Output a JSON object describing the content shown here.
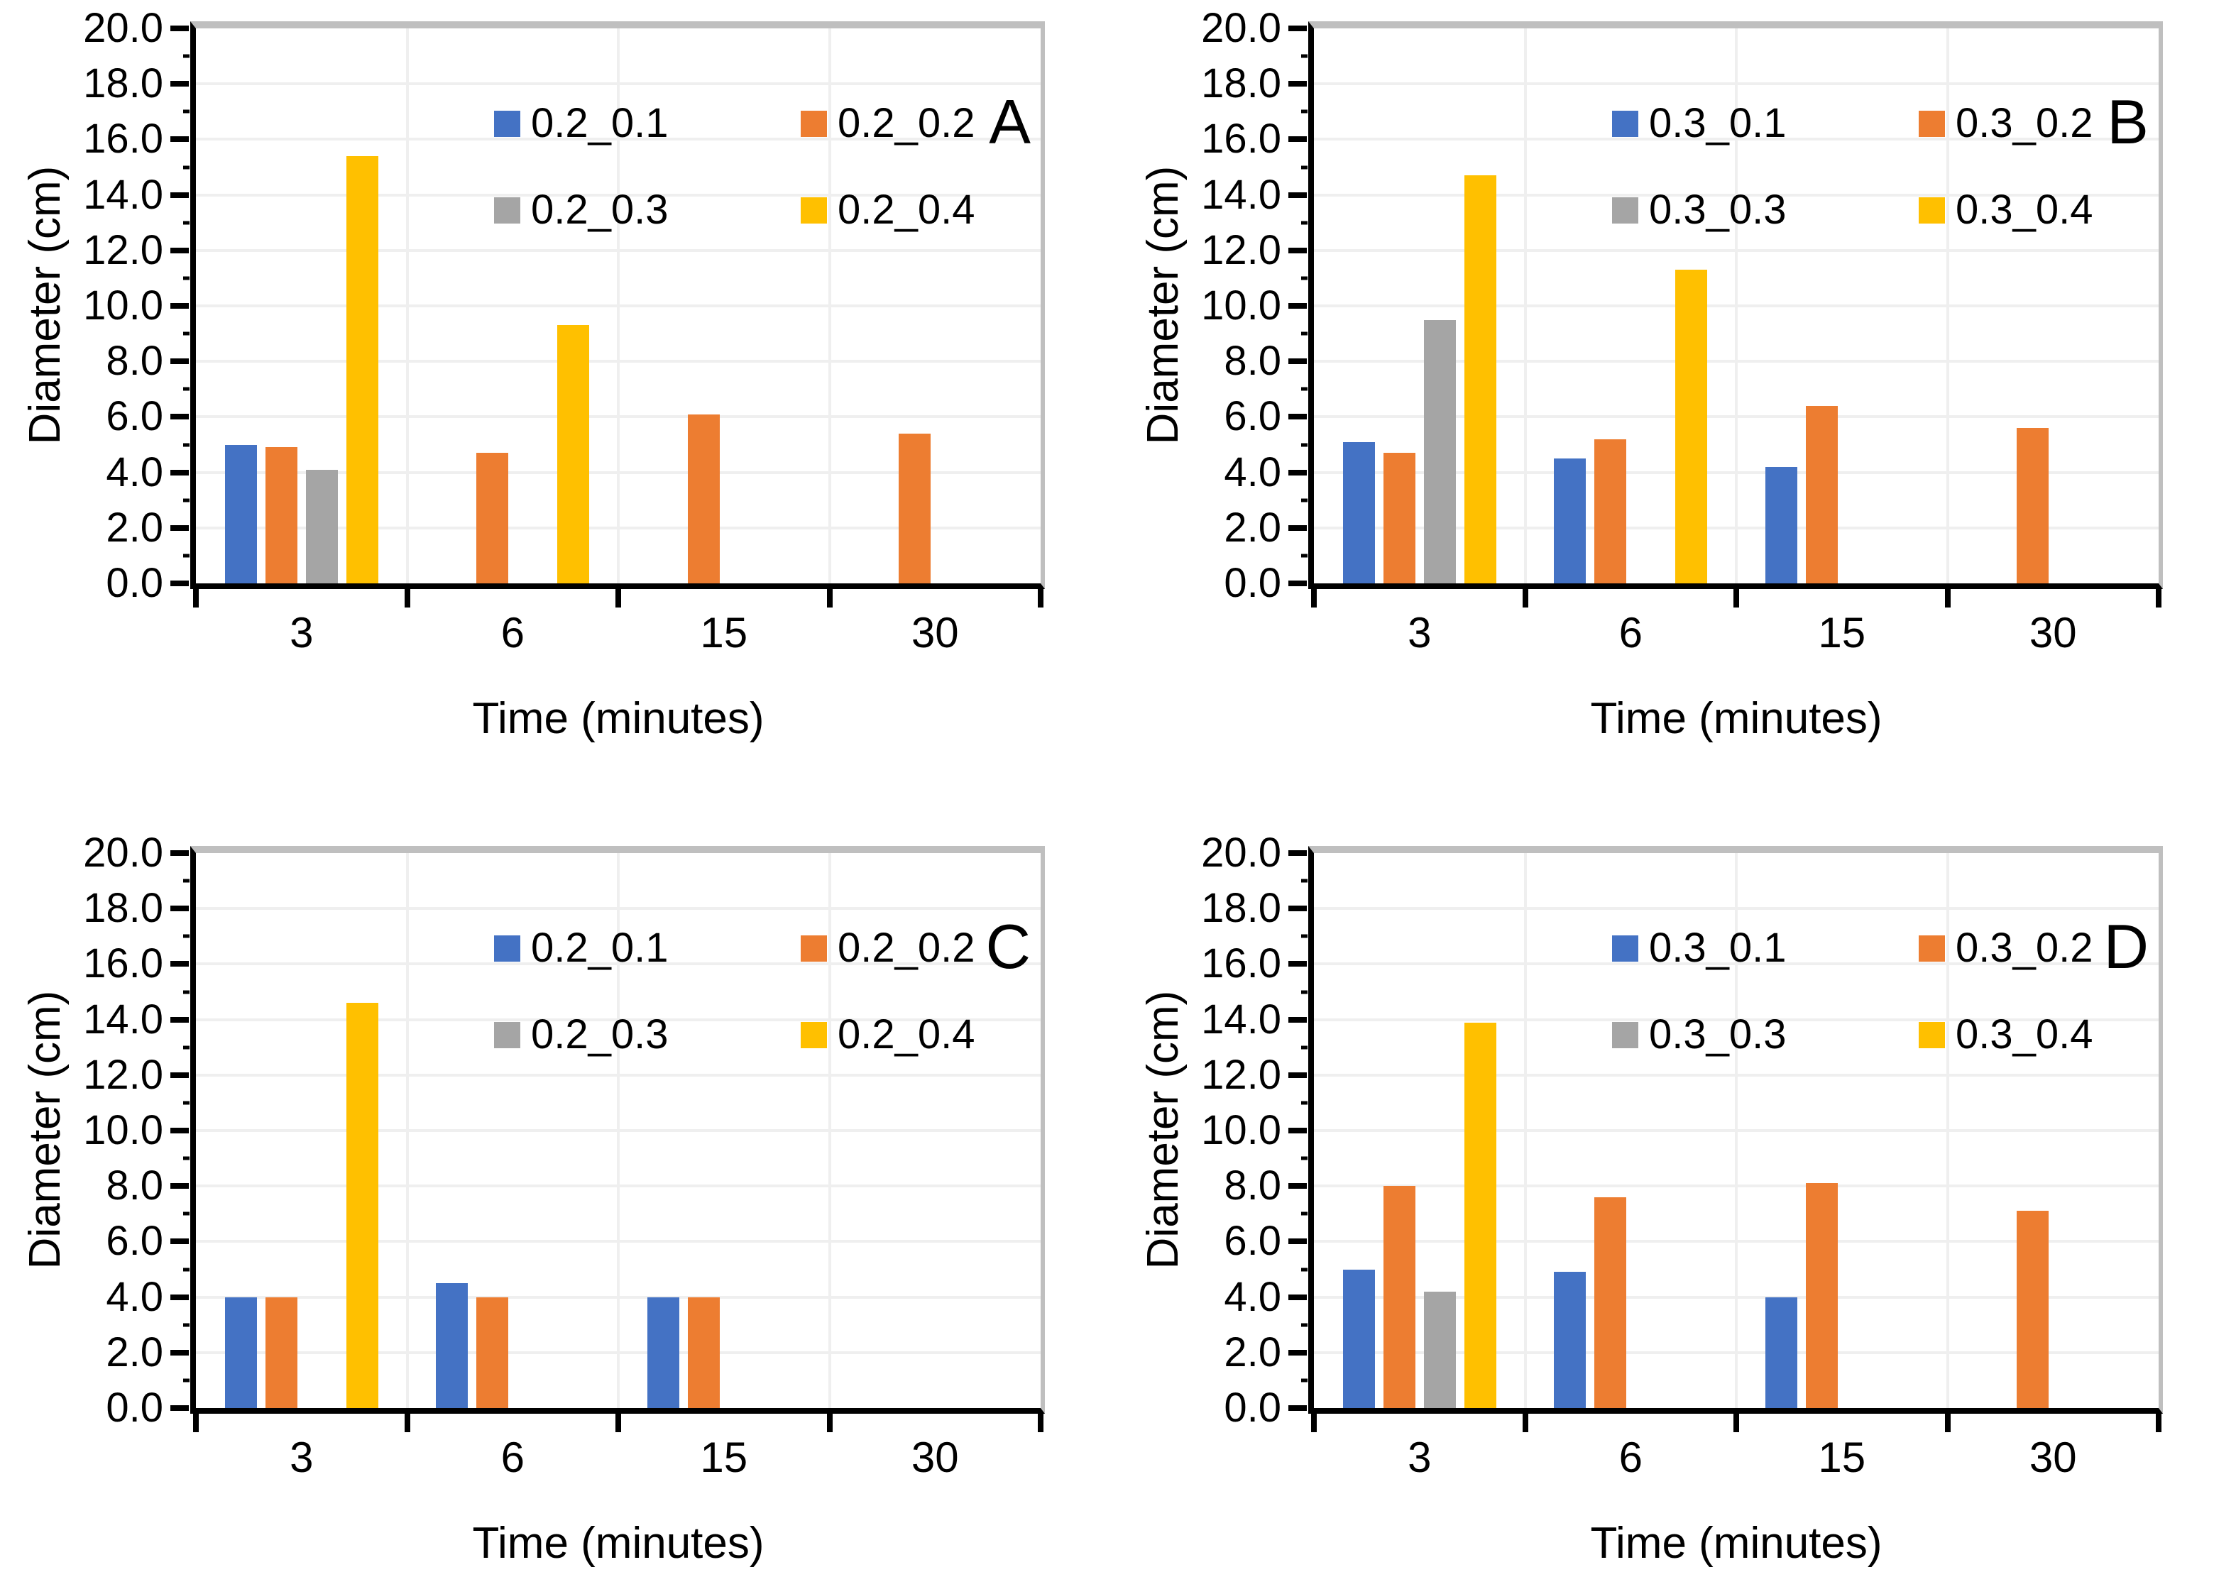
{
  "figure": {
    "background": "#FFFFFF",
    "panel_order": [
      "A",
      "B",
      "C",
      "D"
    ],
    "axis_color": "#000000",
    "gridline_color": "#EFEFEF",
    "border_color": "#BFBFBF"
  },
  "chart_data": [
    {
      "type": "bar",
      "panel_label": "A",
      "xlabel": "Time (minutes)",
      "ylabel": "Diameter (cm)",
      "ylim": [
        0,
        20
      ],
      "ytick_step": 2,
      "ytick_labels": [
        "0.0",
        "2.0",
        "4.0",
        "6.0",
        "8.0",
        "10.0",
        "12.0",
        "14.0",
        "16.0",
        "18.0",
        "20.0"
      ],
      "categories": [
        "3",
        "6",
        "15",
        "30"
      ],
      "grid": true,
      "legend_position": "inside-top",
      "series": [
        {
          "name": "0.2_0.1",
          "color": "#4472C4",
          "values": [
            5.0,
            null,
            null,
            null
          ]
        },
        {
          "name": "0.2_0.2",
          "color": "#ED7D31",
          "values": [
            4.9,
            4.7,
            6.1,
            5.4
          ]
        },
        {
          "name": "0.2_0.3",
          "color": "#A5A5A5",
          "values": [
            4.1,
            null,
            null,
            null
          ]
        },
        {
          "name": "0.2_0.4",
          "color": "#FFC000",
          "values": [
            15.4,
            9.3,
            null,
            null
          ]
        }
      ]
    },
    {
      "type": "bar",
      "panel_label": "B",
      "xlabel": "Time (minutes)",
      "ylabel": "Diameter (cm)",
      "ylim": [
        0,
        20
      ],
      "ytick_step": 2,
      "ytick_labels": [
        "0.0",
        "2.0",
        "4.0",
        "6.0",
        "8.0",
        "10.0",
        "12.0",
        "14.0",
        "16.0",
        "18.0",
        "20.0"
      ],
      "categories": [
        "3",
        "6",
        "15",
        "30"
      ],
      "grid": true,
      "legend_position": "inside-top",
      "series": [
        {
          "name": "0.3_0.1",
          "color": "#4472C4",
          "values": [
            5.1,
            4.5,
            4.2,
            null
          ]
        },
        {
          "name": "0.3_0.2",
          "color": "#ED7D31",
          "values": [
            4.7,
            5.2,
            6.4,
            5.6
          ]
        },
        {
          "name": "0.3_0.3",
          "color": "#A5A5A5",
          "values": [
            9.5,
            null,
            null,
            null
          ]
        },
        {
          "name": "0.3_0.4",
          "color": "#FFC000",
          "values": [
            14.7,
            11.3,
            null,
            null
          ]
        }
      ]
    },
    {
      "type": "bar",
      "panel_label": "C",
      "xlabel": "Time (minutes)",
      "ylabel": "Diameter (cm)",
      "ylim": [
        0,
        20
      ],
      "ytick_step": 2,
      "ytick_labels": [
        "0.0",
        "2.0",
        "4.0",
        "6.0",
        "8.0",
        "10.0",
        "12.0",
        "14.0",
        "16.0",
        "18.0",
        "20.0"
      ],
      "categories": [
        "3",
        "6",
        "15",
        "30"
      ],
      "grid": true,
      "legend_position": "inside-top",
      "series": [
        {
          "name": "0.2_0.1",
          "color": "#4472C4",
          "values": [
            4.0,
            4.5,
            4.0,
            null
          ]
        },
        {
          "name": "0.2_0.2",
          "color": "#ED7D31",
          "values": [
            4.0,
            4.0,
            4.0,
            null
          ]
        },
        {
          "name": "0.2_0.3",
          "color": "#A5A5A5",
          "values": [
            null,
            null,
            null,
            null
          ]
        },
        {
          "name": "0.2_0.4",
          "color": "#FFC000",
          "values": [
            14.6,
            null,
            null,
            null
          ]
        }
      ]
    },
    {
      "type": "bar",
      "panel_label": "D",
      "xlabel": "Time (minutes)",
      "ylabel": "Diameter (cm)",
      "ylim": [
        0,
        20
      ],
      "ytick_step": 2,
      "ytick_labels": [
        "0.0",
        "2.0",
        "4.0",
        "6.0",
        "8.0",
        "10.0",
        "12.0",
        "14.0",
        "16.0",
        "18.0",
        "20.0"
      ],
      "categories": [
        "3",
        "6",
        "15",
        "30"
      ],
      "grid": true,
      "legend_position": "inside-top",
      "series": [
        {
          "name": "0.3_0.1",
          "color": "#4472C4",
          "values": [
            5.0,
            4.9,
            4.0,
            null
          ]
        },
        {
          "name": "0.3_0.2",
          "color": "#ED7D31",
          "values": [
            8.0,
            7.6,
            8.1,
            7.1
          ]
        },
        {
          "name": "0.3_0.3",
          "color": "#A5A5A5",
          "values": [
            4.2,
            null,
            null,
            null
          ]
        },
        {
          "name": "0.3_0.4",
          "color": "#FFC000",
          "values": [
            13.9,
            null,
            null,
            null
          ]
        }
      ]
    }
  ]
}
